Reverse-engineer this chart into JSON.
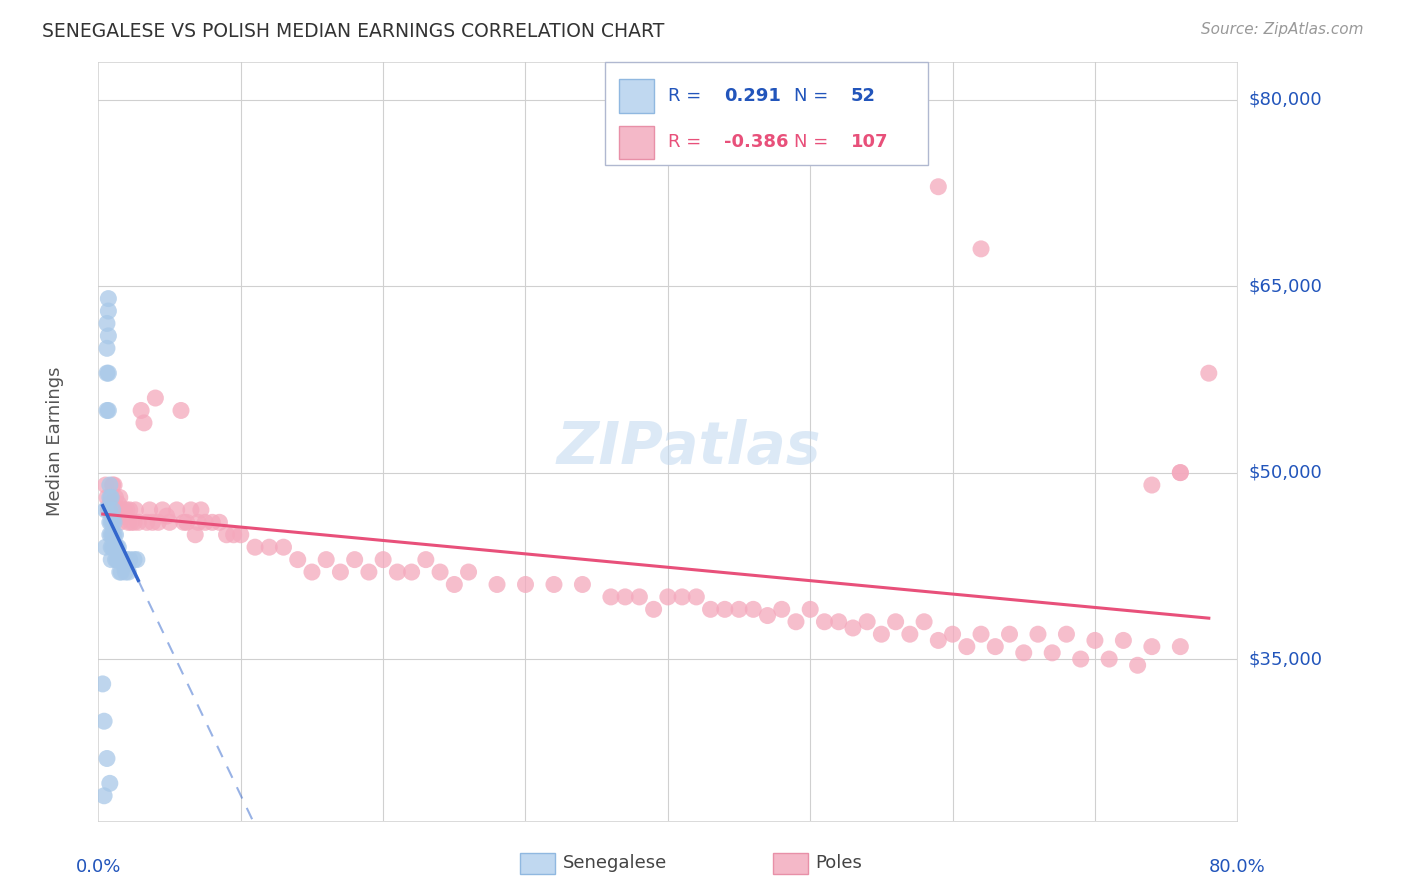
{
  "title": "SENEGALESE VS POLISH MEDIAN EARNINGS CORRELATION CHART",
  "source": "Source: ZipAtlas.com",
  "ylabel": "Median Earnings",
  "background_color": "#ffffff",
  "senegalese_color": "#a8c8e8",
  "poles_color": "#f4a8bc",
  "senegalese_line_color": "#3366cc",
  "poles_line_color": "#e8507a",
  "axis_label_color": "#2255bb",
  "xmin": 0.0,
  "xmax": 0.8,
  "ymin": 22000,
  "ymax": 83000,
  "ytick_vals": [
    35000,
    50000,
    65000,
    80000
  ],
  "ytick_labels": [
    "$35,000",
    "$50,000",
    "$65,000",
    "$80,000"
  ],
  "senegalese_x": [
    0.004,
    0.005,
    0.005,
    0.006,
    0.006,
    0.006,
    0.006,
    0.007,
    0.007,
    0.007,
    0.007,
    0.007,
    0.008,
    0.008,
    0.008,
    0.008,
    0.008,
    0.009,
    0.009,
    0.009,
    0.009,
    0.009,
    0.01,
    0.01,
    0.01,
    0.01,
    0.011,
    0.011,
    0.011,
    0.012,
    0.012,
    0.012,
    0.013,
    0.013,
    0.014,
    0.014,
    0.015,
    0.015,
    0.016,
    0.016,
    0.017,
    0.018,
    0.019,
    0.02,
    0.021,
    0.022,
    0.025,
    0.027,
    0.003,
    0.004,
    0.006,
    0.008
  ],
  "senegalese_y": [
    24000,
    47000,
    44000,
    62000,
    60000,
    58000,
    55000,
    64000,
    63000,
    61000,
    58000,
    55000,
    49000,
    48000,
    47000,
    46000,
    45000,
    48000,
    46000,
    45000,
    44000,
    43000,
    47000,
    46000,
    45000,
    44000,
    46000,
    45000,
    44000,
    45000,
    44000,
    43000,
    44000,
    43000,
    44000,
    43000,
    43000,
    42000,
    43000,
    42000,
    43000,
    42500,
    42000,
    43000,
    42000,
    43000,
    43000,
    43000,
    33000,
    30000,
    27000,
    25000
  ],
  "poles_x": [
    0.005,
    0.006,
    0.007,
    0.008,
    0.009,
    0.01,
    0.01,
    0.011,
    0.012,
    0.013,
    0.014,
    0.015,
    0.015,
    0.016,
    0.017,
    0.018,
    0.02,
    0.021,
    0.022,
    0.023,
    0.025,
    0.026,
    0.028,
    0.03,
    0.032,
    0.034,
    0.036,
    0.038,
    0.04,
    0.042,
    0.045,
    0.048,
    0.05,
    0.055,
    0.058,
    0.06,
    0.062,
    0.065,
    0.068,
    0.07,
    0.072,
    0.075,
    0.08,
    0.085,
    0.09,
    0.095,
    0.1,
    0.11,
    0.12,
    0.13,
    0.14,
    0.15,
    0.16,
    0.17,
    0.18,
    0.19,
    0.2,
    0.21,
    0.22,
    0.23,
    0.24,
    0.25,
    0.26,
    0.28,
    0.3,
    0.32,
    0.34,
    0.36,
    0.38,
    0.4,
    0.42,
    0.44,
    0.46,
    0.48,
    0.5,
    0.52,
    0.54,
    0.56,
    0.58,
    0.6,
    0.62,
    0.64,
    0.66,
    0.68,
    0.7,
    0.72,
    0.74,
    0.76,
    0.37,
    0.39,
    0.41,
    0.43,
    0.45,
    0.47,
    0.49,
    0.51,
    0.53,
    0.55,
    0.57,
    0.59,
    0.61,
    0.63,
    0.65,
    0.67,
    0.69,
    0.71,
    0.73
  ],
  "poles_y": [
    49000,
    48000,
    47000,
    47500,
    48000,
    49000,
    47000,
    49000,
    48000,
    47000,
    47500,
    46000,
    48000,
    47000,
    46500,
    47000,
    47000,
    46000,
    47000,
    46000,
    46000,
    47000,
    46000,
    55000,
    54000,
    46000,
    47000,
    46000,
    56000,
    46000,
    47000,
    46500,
    46000,
    47000,
    55000,
    46000,
    46000,
    47000,
    45000,
    46000,
    47000,
    46000,
    46000,
    46000,
    45000,
    45000,
    45000,
    44000,
    44000,
    44000,
    43000,
    42000,
    43000,
    42000,
    43000,
    42000,
    43000,
    42000,
    42000,
    43000,
    42000,
    41000,
    42000,
    41000,
    41000,
    41000,
    41000,
    40000,
    40000,
    40000,
    40000,
    39000,
    39000,
    39000,
    39000,
    38000,
    38000,
    38000,
    38000,
    37000,
    37000,
    37000,
    37000,
    37000,
    36500,
    36500,
    36000,
    36000,
    40000,
    39000,
    40000,
    39000,
    39000,
    38500,
    38000,
    38000,
    37500,
    37000,
    37000,
    36500,
    36000,
    36000,
    35500,
    35500,
    35000,
    35000,
    34500
  ],
  "poles_outliers_x": [
    0.59,
    0.62,
    0.78,
    0.76,
    0.76,
    0.74
  ],
  "poles_outliers_y": [
    73000,
    68000,
    58000,
    50000,
    50000,
    49000
  ]
}
